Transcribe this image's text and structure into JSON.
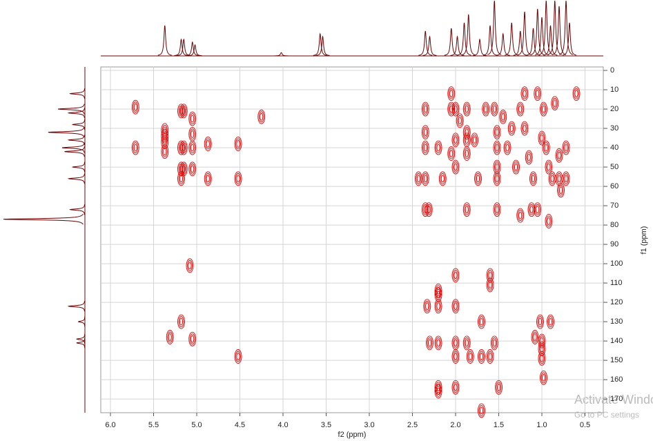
{
  "chart_data": {
    "type": "scatter",
    "xlabel": "f2 (ppm)",
    "ylabel": "f1 (ppm)",
    "xlim": [
      6.112,
      0.288
    ],
    "ylim": [
      -1.8,
      177.1
    ],
    "xticks": [
      {
        "value": 6,
        "label": "6.0"
      },
      5.5,
      {
        "value": 5,
        "label": "5.0"
      },
      4.5,
      {
        "value": 4,
        "label": "4.0"
      },
      3.5,
      {
        "value": 3,
        "label": "3.0"
      },
      2.5,
      {
        "value": 2,
        "label": "2.0"
      },
      1.5,
      {
        "value": 1,
        "label": "1.0"
      },
      0.5
    ],
    "yticks": [
      0,
      10,
      20,
      30,
      40,
      50,
      60,
      70,
      80,
      90,
      100,
      110,
      120,
      130,
      140,
      150,
      160,
      170
    ],
    "grid": true,
    "color": "#e00000",
    "projection_color": "#6b0000",
    "x": [
      5.71,
      5.71,
      5.37,
      5.37,
      5.37,
      5.37,
      5.18,
      5.15,
      5.18,
      5.15,
      5.18,
      5.15,
      5.18,
      5.05,
      5.05,
      5.05,
      5.05,
      4.87,
      4.87,
      4.52,
      4.52,
      4.25,
      5.08,
      5.18,
      5.31,
      5.05,
      4.52,
      2.35,
      2.35,
      2.35,
      2.35,
      2.35,
      2.31,
      2.2,
      2.2,
      2.2,
      2.2,
      2.33,
      2.3,
      2.2,
      2.2,
      2.2,
      2.05,
      2.05,
      2.05,
      2.0,
      2.0,
      2.0,
      2.0,
      2.0,
      2.0,
      2.0,
      2.0,
      1.95,
      1.87,
      1.87,
      1.87,
      1.87,
      1.87,
      1.87,
      1.83,
      1.78,
      1.7,
      1.7,
      1.65,
      1.6,
      1.6,
      1.6,
      1.55,
      1.52,
      1.52,
      1.52,
      1.52,
      1.52,
      1.55,
      1.5,
      1.7,
      1.45,
      1.4,
      1.35,
      1.3,
      1.25,
      1.2,
      1.2,
      1.15,
      1.1,
      1.05,
      1.05,
      1.0,
      1.0,
      1.0,
      1.0,
      1.02,
      0.98,
      0.95,
      0.92,
      0.88,
      0.9,
      0.8,
      0.8,
      0.85,
      0.72,
      0.72,
      0.6,
      0.92,
      1.08,
      0.98,
      2.15,
      2.43,
      1.74,
      1.12,
      1.25,
      0.78
    ],
    "y": [
      19,
      40,
      31,
      34,
      37,
      42,
      21,
      21,
      40,
      40,
      51,
      51,
      56,
      25,
      33,
      40,
      51,
      38,
      56,
      38,
      56,
      24,
      101,
      130,
      138,
      139,
      148,
      20,
      32,
      40,
      56,
      72,
      72,
      40,
      114,
      116,
      122,
      122,
      141,
      141,
      164,
      166,
      12,
      20,
      43,
      20,
      36,
      50,
      106,
      122,
      141,
      148,
      164,
      26,
      20,
      32,
      43,
      36,
      72,
      141,
      148,
      36,
      130,
      148,
      20,
      106,
      111,
      148,
      20,
      32,
      40,
      50,
      56,
      72,
      141,
      164,
      176,
      24,
      40,
      30,
      50,
      20,
      12,
      30,
      45,
      56,
      12,
      72,
      35,
      140,
      144,
      149,
      130,
      20,
      40,
      50,
      56,
      130,
      44,
      56,
      17,
      40,
      56,
      12,
      78,
      138,
      159,
      56,
      56,
      56,
      72,
      75,
      62
    ],
    "f2_projection": {
      "x": [
        5.37,
        5.18,
        5.15,
        5.05,
        5.02,
        4.02,
        3.57,
        3.54,
        2.35,
        2.3,
        2.05,
        1.98,
        1.9,
        1.85,
        1.72,
        1.6,
        1.55,
        1.45,
        1.35,
        1.25,
        1.2,
        1.1,
        1.05,
        1.0,
        0.95,
        0.9,
        0.85,
        0.8,
        0.72,
        0.68
      ],
      "height": [
        0.55,
        0.3,
        0.3,
        0.25,
        0.2,
        0.06,
        0.4,
        0.35,
        0.45,
        0.35,
        0.5,
        0.35,
        0.6,
        0.75,
        0.3,
        0.55,
        1.0,
        0.4,
        0.6,
        0.45,
        0.8,
        0.5,
        0.85,
        0.7,
        1.0,
        0.55,
        1.0,
        0.9,
        1.0,
        0.6
      ]
    },
    "f1_projection": {
      "y": [
        12,
        20,
        22,
        28,
        32,
        36,
        40,
        42,
        50,
        56,
        72,
        77,
        122,
        130,
        139,
        141
      ],
      "height": [
        0.18,
        0.33,
        0.2,
        0.15,
        0.45,
        0.2,
        0.28,
        0.25,
        0.15,
        0.2,
        0.18,
        1.0,
        0.2,
        0.08,
        0.1,
        0.1
      ]
    },
    "watermark": {
      "title": "Activate Windows",
      "subtitle": "Go to PC settings"
    }
  }
}
